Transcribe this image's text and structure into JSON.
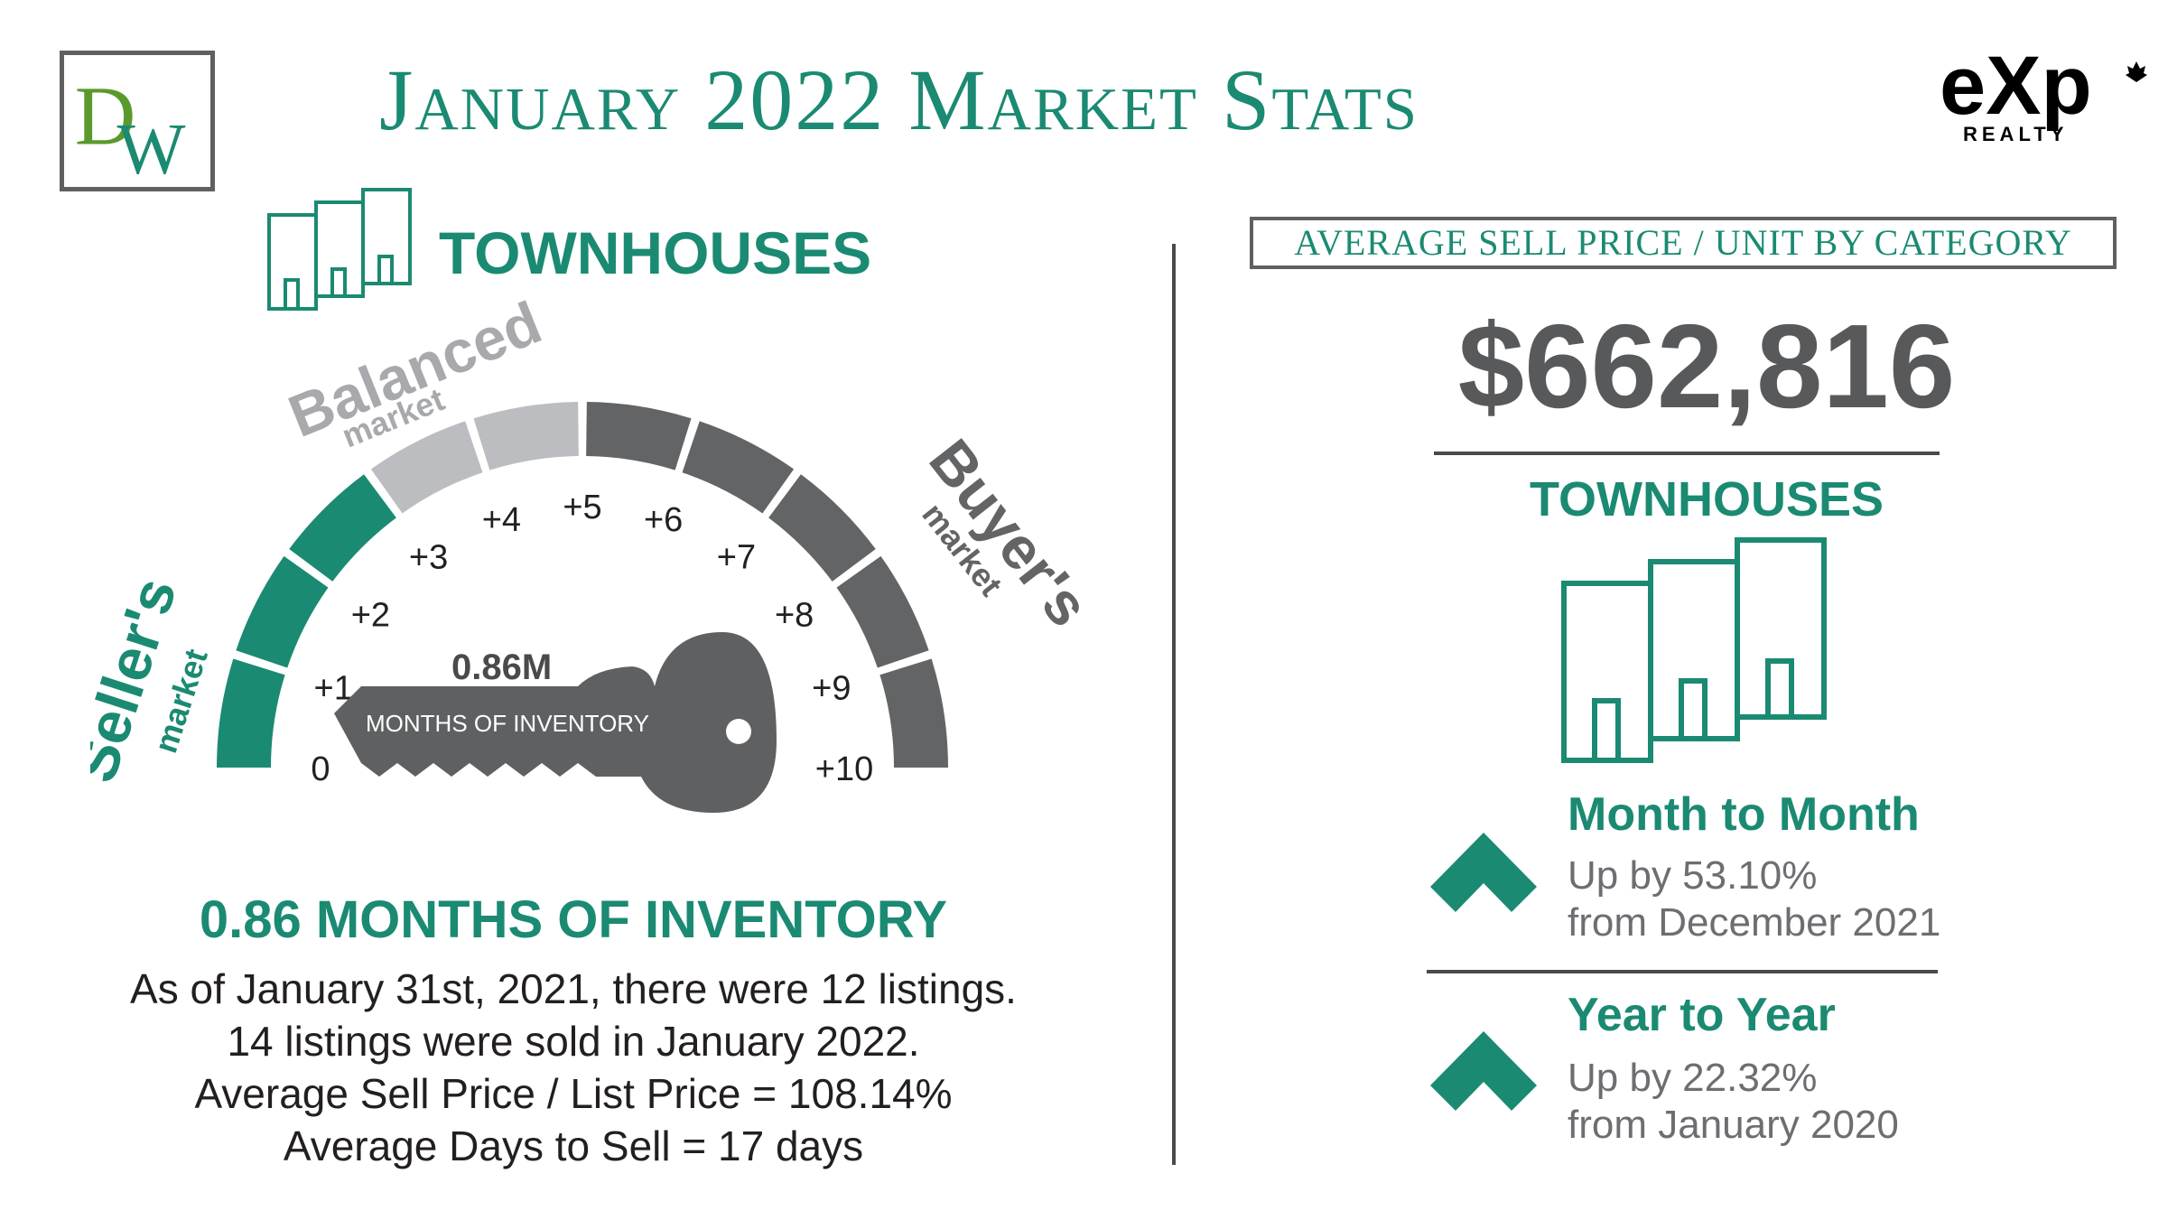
{
  "header": {
    "title": "January 2022 Market Stats",
    "left_logo_text": "DW",
    "right_logo_text": "eXp",
    "right_logo_sub": "REALTY"
  },
  "left": {
    "category": "TOWNHOUSES",
    "gauge": {
      "zones": [
        "Seller's",
        "Balanced",
        "Buyer's"
      ],
      "zone_sub": "market",
      "ticks": [
        "0",
        "+1",
        "+2",
        "+3",
        "+4",
        "+5",
        "+6",
        "+7",
        "+8",
        "+9",
        "+10"
      ],
      "key_value": "0.86M",
      "key_label": "MONTHS OF INVENTORY",
      "value": 0.86
    },
    "inventory_heading": "0.86 MONTHS OF INVENTORY",
    "lines": [
      "As of January 31st, 2021, there were 12 listings.",
      "14 listings were sold in January 2022.",
      "Average Sell Price / List Price = 108.14%",
      "Average Days to Sell = 17 days"
    ]
  },
  "right": {
    "box_title": "Average Sell Price / Unit by Category",
    "price": "$662,816",
    "category": "TOWNHOUSES",
    "month": {
      "title": "Month to Month",
      "line1": "Up by 53.10%",
      "line2": "from December 2021"
    },
    "year": {
      "title": "Year to Year",
      "line1": "Up by 22.32%",
      "line2": "from January 2020"
    }
  },
  "colors": {
    "green": "#1b8a72",
    "gray_dark": "#636466",
    "gray_light": "#bcbdc0",
    "text_gray": "#58595b"
  }
}
